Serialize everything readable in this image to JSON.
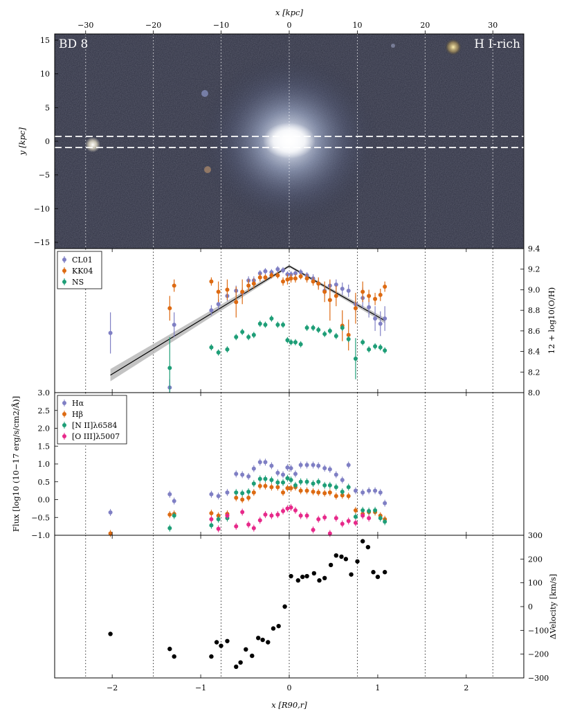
{
  "colors": {
    "cl01": "#7f7fc4",
    "kk04": "#dd6a12",
    "ns": "#1e9e77",
    "halpha": "#7f7fc4",
    "hbeta": "#dd6a12",
    "nii": "#1e9e77",
    "oiii": "#e7298a",
    "velocity": "#000000",
    "fit_band": "#b4b4b4"
  },
  "image_panel": {
    "title_left": "BD 8",
    "title_right": "H I-rich",
    "top_xlabel": "x [kpc]",
    "ylabel": "y [kpc]",
    "top_ticks": [
      "−30",
      "−20",
      "−10",
      "0",
      "10",
      "20",
      "30"
    ],
    "left_ticks": [
      "15",
      "10",
      "5",
      "0",
      "−5",
      "−10",
      "−15"
    ]
  },
  "bottom_xlabel": "x [R90,r]",
  "bottom_ticks": [
    "−2",
    "−1",
    "0",
    "1",
    "2"
  ],
  "chart_data": [
    {
      "type": "scatter",
      "panel": "metallicity",
      "ylabel": "12 + log10(O/H)",
      "ylim": [
        8.0,
        9.4
      ],
      "yticks": [
        "8.0",
        "8.2",
        "8.4",
        "8.6",
        "8.8",
        "9.0",
        "9.2",
        "9.4"
      ],
      "left_corner_label": "3.0",
      "xlim": [
        -2.65,
        2.65
      ],
      "legend": [
        "CL01",
        "KK04",
        "NS"
      ],
      "series": [
        {
          "name": "CL01",
          "color": "#7f7fc4",
          "x": [
            -2.02,
            -1.35,
            -1.3,
            -0.88,
            -0.8,
            -0.7,
            -0.6,
            -0.53,
            -0.46,
            -0.4,
            -0.33,
            -0.27,
            -0.2,
            -0.13,
            -0.07,
            -0.02,
            0.02,
            0.07,
            0.13,
            0.2,
            0.27,
            0.33,
            0.4,
            0.46,
            0.53,
            0.6,
            0.67,
            0.75,
            0.83,
            0.9,
            0.97,
            1.03,
            1.08
          ],
          "y": [
            8.58,
            8.05,
            8.66,
            8.8,
            8.86,
            8.94,
            8.99,
            8.97,
            9.09,
            9.09,
            9.16,
            9.18,
            9.17,
            9.2,
            9.19,
            9.15,
            9.15,
            9.16,
            9.17,
            9.14,
            9.11,
            9.06,
            8.99,
            9.04,
            9.05,
            9.01,
            8.99,
            8.86,
            8.92,
            8.83,
            8.72,
            8.67,
            8.72
          ],
          "err": [
            0.2,
            0.08,
            0.12,
            0.05,
            0.05,
            0.05,
            0.05,
            0.05,
            0.04,
            0.04,
            0.03,
            0.03,
            0.03,
            0.03,
            0.03,
            0.03,
            0.03,
            0.03,
            0.03,
            0.03,
            0.04,
            0.04,
            0.05,
            0.05,
            0.05,
            0.06,
            0.06,
            0.08,
            0.1,
            0.1,
            0.12,
            0.12,
            0.12
          ]
        },
        {
          "name": "KK04",
          "color": "#dd6a12",
          "x": [
            -1.35,
            -1.3,
            -0.88,
            -0.8,
            -0.7,
            -0.6,
            -0.53,
            -0.46,
            -0.4,
            -0.33,
            -0.27,
            -0.2,
            -0.13,
            -0.07,
            -0.02,
            0.02,
            0.07,
            0.13,
            0.2,
            0.27,
            0.33,
            0.4,
            0.46,
            0.53,
            0.6,
            0.67,
            0.75,
            0.83,
            0.9,
            0.97,
            1.03,
            1.08
          ],
          "y": [
            8.82,
            9.04,
            9.08,
            8.98,
            9.0,
            8.88,
            8.98,
            9.04,
            9.06,
            9.12,
            9.12,
            9.14,
            9.14,
            9.08,
            9.1,
            9.11,
            9.11,
            9.13,
            9.11,
            9.08,
            9.06,
            8.98,
            8.9,
            8.94,
            8.65,
            8.56,
            8.82,
            8.98,
            8.94,
            8.91,
            8.95,
            9.03
          ],
          "err": [
            0.12,
            0.06,
            0.04,
            0.1,
            0.1,
            0.15,
            0.12,
            0.06,
            0.05,
            0.04,
            0.03,
            0.03,
            0.03,
            0.04,
            0.05,
            0.04,
            0.04,
            0.03,
            0.04,
            0.04,
            0.06,
            0.1,
            0.2,
            0.1,
            0.15,
            0.15,
            0.15,
            0.1,
            0.06,
            0.06,
            0.06,
            0.05
          ]
        },
        {
          "name": "NS",
          "color": "#1e9e77",
          "x": [
            -1.35,
            -0.88,
            -0.8,
            -0.7,
            -0.6,
            -0.53,
            -0.46,
            -0.4,
            -0.33,
            -0.27,
            -0.2,
            -0.13,
            -0.07,
            -0.02,
            0.02,
            0.07,
            0.13,
            0.2,
            0.27,
            0.33,
            0.4,
            0.46,
            0.53,
            0.6,
            0.67,
            0.75,
            0.83,
            0.9,
            0.97,
            1.03,
            1.08
          ],
          "y": [
            8.24,
            8.44,
            8.39,
            8.42,
            8.54,
            8.59,
            8.54,
            8.56,
            8.67,
            8.66,
            8.72,
            8.66,
            8.66,
            8.51,
            8.49,
            8.49,
            8.47,
            8.63,
            8.63,
            8.61,
            8.57,
            8.6,
            8.55,
            8.63,
            8.52,
            8.33,
            8.49,
            8.42,
            8.45,
            8.44,
            8.41
          ],
          "err": [
            0.3,
            0.03,
            0.03,
            0.03,
            0.03,
            0.03,
            0.03,
            0.03,
            0.03,
            0.03,
            0.03,
            0.03,
            0.03,
            0.03,
            0.03,
            0.03,
            0.03,
            0.03,
            0.03,
            0.03,
            0.03,
            0.03,
            0.03,
            0.03,
            0.03,
            0.2,
            0.03,
            0.03,
            0.03,
            0.03,
            0.03
          ]
        }
      ],
      "fit_line": {
        "x": [
          -2.02,
          0.0,
          1.08
        ],
        "y": [
          8.17,
          9.23,
          8.7
        ]
      }
    },
    {
      "type": "scatter",
      "panel": "line_flux",
      "ylabel": "Flux [log10 (10−17 erg/s/cm2/Å)]",
      "ylim": [
        -1.0,
        3.0
      ],
      "yticks": [
        "−1.0",
        "−0.5",
        "0.0",
        "0.5",
        "1.0",
        "1.5",
        "2.0",
        "2.5"
      ],
      "xlim": [
        -2.65,
        2.65
      ],
      "legend": [
        "Hα",
        "Hβ",
        "[N II]λ6584",
        "[O III]λ5007"
      ],
      "series": [
        {
          "name": "Hα",
          "color": "#7f7fc4",
          "x": [
            -2.02,
            -1.35,
            -1.3,
            -0.88,
            -0.8,
            -0.7,
            -0.6,
            -0.53,
            -0.46,
            -0.4,
            -0.33,
            -0.27,
            -0.2,
            -0.13,
            -0.07,
            -0.02,
            0.02,
            0.07,
            0.13,
            0.2,
            0.27,
            0.33,
            0.4,
            0.46,
            0.53,
            0.6,
            0.67,
            0.75,
            0.83,
            0.9,
            0.97,
            1.03,
            1.08
          ],
          "y": [
            -0.36,
            0.15,
            -0.04,
            0.15,
            0.1,
            0.2,
            0.72,
            0.7,
            0.65,
            0.87,
            1.05,
            1.05,
            0.95,
            0.75,
            0.7,
            0.9,
            0.88,
            0.72,
            0.97,
            0.97,
            0.97,
            0.95,
            0.88,
            0.85,
            0.7,
            0.55,
            0.97,
            0.25,
            0.2,
            0.25,
            0.25,
            0.2,
            -0.1
          ]
        },
        {
          "name": "Hβ",
          "color": "#dd6a12",
          "x": [
            -2.02,
            -1.35,
            -1.3,
            -0.88,
            -0.8,
            -0.7,
            -0.6,
            -0.53,
            -0.46,
            -0.4,
            -0.33,
            -0.27,
            -0.2,
            -0.13,
            -0.07,
            -0.02,
            0.02,
            0.07,
            0.13,
            0.2,
            0.27,
            0.33,
            0.4,
            0.46,
            0.53,
            0.6,
            0.67,
            0.75,
            0.83,
            0.9,
            0.97,
            1.03,
            1.08
          ],
          "y": [
            -0.95,
            -0.42,
            -0.4,
            -0.38,
            -0.45,
            -0.4,
            0.05,
            0.0,
            0.05,
            0.2,
            0.38,
            0.38,
            0.35,
            0.35,
            0.2,
            0.32,
            0.32,
            0.35,
            0.25,
            0.25,
            0.22,
            0.2,
            0.18,
            0.2,
            0.1,
            0.12,
            0.1,
            -0.3,
            -0.4,
            -0.35,
            -0.35,
            -0.45,
            -0.55
          ]
        },
        {
          "name": "[N II]λ6584",
          "color": "#1e9e77",
          "x": [
            -1.35,
            -1.3,
            -0.88,
            -0.8,
            -0.7,
            -0.6,
            -0.53,
            -0.46,
            -0.4,
            -0.33,
            -0.27,
            -0.2,
            -0.13,
            -0.07,
            -0.02,
            0.02,
            0.07,
            0.13,
            0.2,
            0.27,
            0.33,
            0.4,
            0.46,
            0.53,
            0.6,
            0.67,
            0.75,
            0.83,
            0.9,
            0.97,
            1.03,
            1.08
          ],
          "y": [
            -0.8,
            -0.45,
            -0.72,
            -0.55,
            -0.52,
            0.2,
            0.18,
            0.22,
            0.45,
            0.58,
            0.58,
            0.55,
            0.48,
            0.48,
            0.6,
            0.55,
            0.4,
            0.5,
            0.5,
            0.45,
            0.5,
            0.4,
            0.4,
            0.35,
            0.22,
            0.35,
            -0.48,
            -0.3,
            -0.32,
            -0.3,
            -0.52,
            -0.62
          ]
        },
        {
          "name": "[O III]λ5007",
          "color": "#e7298a",
          "x": [
            -0.88,
            -0.8,
            -0.7,
            -0.6,
            -0.53,
            -0.46,
            -0.4,
            -0.33,
            -0.27,
            -0.2,
            -0.13,
            -0.07,
            -0.02,
            0.02,
            0.07,
            0.13,
            0.2,
            0.27,
            0.33,
            0.4,
            0.46,
            0.53,
            0.6,
            0.67,
            0.75,
            0.83,
            0.9
          ],
          "y": [
            -0.55,
            -0.82,
            -0.45,
            -0.75,
            -0.35,
            -0.7,
            -0.8,
            -0.58,
            -0.42,
            -0.45,
            -0.42,
            -0.32,
            -0.25,
            -0.22,
            -0.3,
            -0.45,
            -0.45,
            -0.85,
            -0.55,
            -0.5,
            -0.95,
            -0.52,
            -0.68,
            -0.6,
            -0.65,
            -0.45,
            -0.52
          ]
        }
      ]
    },
    {
      "type": "scatter",
      "panel": "velocity",
      "ylabel": "ΔVelocity [km/s]",
      "ylim": [
        -300,
        300
      ],
      "yticks": [
        "−300",
        "−200",
        "−100",
        "0",
        "100",
        "200",
        "300"
      ],
      "xlim": [
        -2.65,
        2.65
      ],
      "series": [
        {
          "color": "#000000",
          "x": [
            -2.02,
            -1.35,
            -1.3,
            -0.88,
            -0.82,
            -0.77,
            -0.7,
            -0.6,
            -0.55,
            -0.49,
            -0.42,
            -0.35,
            -0.3,
            -0.24,
            -0.18,
            -0.12,
            -0.05,
            0.02,
            0.1,
            0.15,
            0.2,
            0.28,
            0.34,
            0.4,
            0.47,
            0.53,
            0.59,
            0.64,
            0.7,
            0.77,
            0.83,
            0.89,
            0.95,
            1.0,
            1.08
          ],
          "y": [
            -115,
            -178,
            -210,
            -210,
            -150,
            -165,
            -145,
            -253,
            -235,
            -180,
            -207,
            -132,
            -140,
            -150,
            -92,
            -82,
            0,
            128,
            110,
            125,
            128,
            140,
            110,
            120,
            175,
            215,
            210,
            200,
            135,
            190,
            275,
            250,
            145,
            125,
            145
          ]
        }
      ]
    }
  ]
}
